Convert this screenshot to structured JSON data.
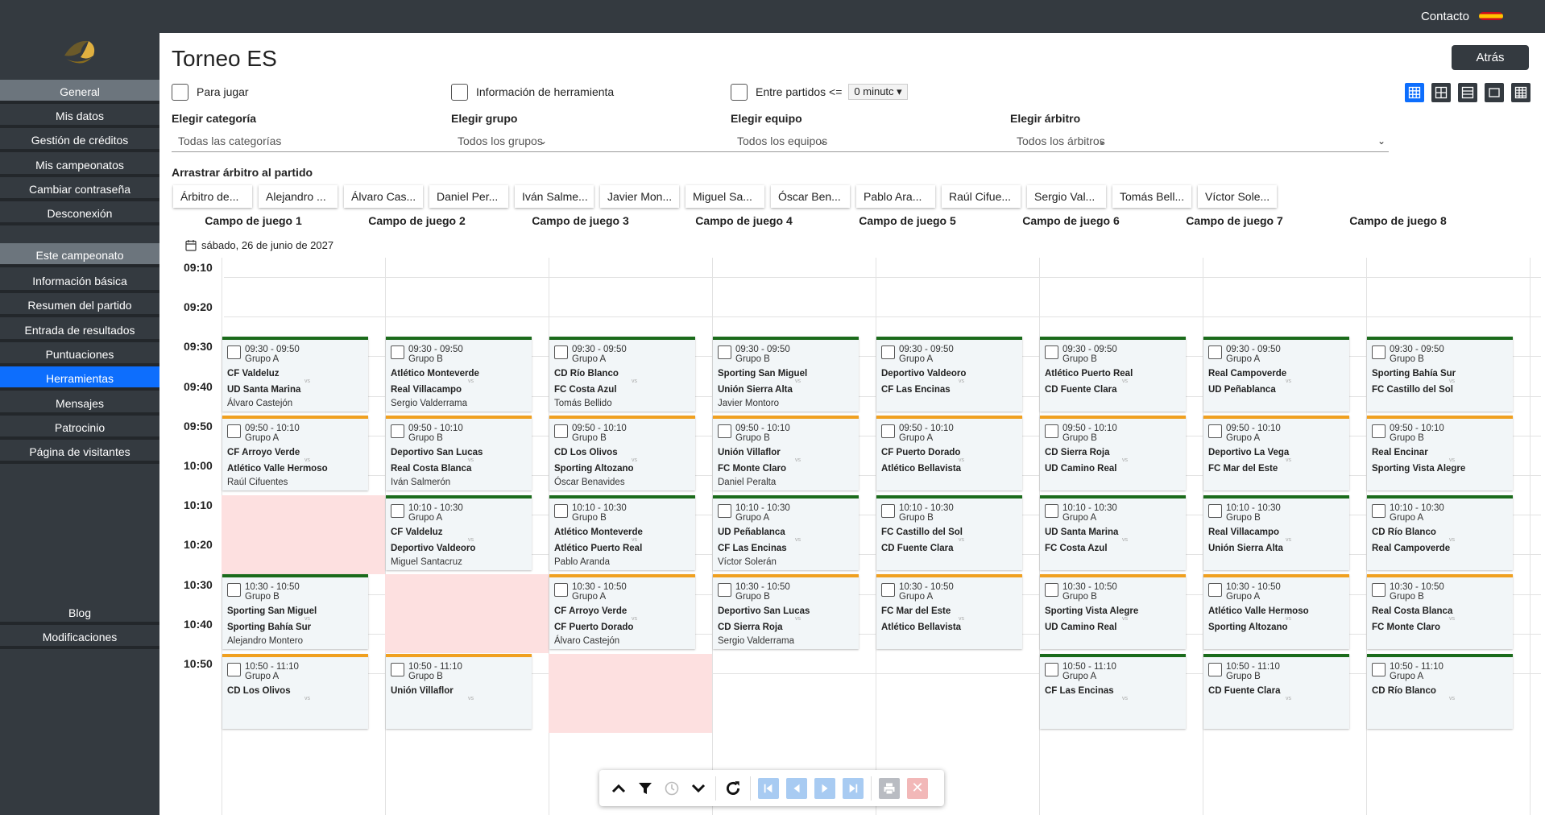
{
  "topbar": {
    "contact": "Contacto"
  },
  "sidebar": {
    "general_header": "General",
    "general_items": [
      "Mis datos",
      "Gestión de créditos",
      "Mis campeonatos",
      "Cambiar contraseña",
      "Desconexión"
    ],
    "champ_header": "Este campeonato",
    "champ_items": [
      "Información básica",
      "Resumen del partido",
      "Entrada de resultados",
      "Puntuaciones",
      "Herramientas",
      "Mensajes",
      "Patrocinio",
      "Página de visitantes"
    ],
    "bottom_items": [
      "Blog",
      "Modificaciones"
    ]
  },
  "page": {
    "title": "Torneo ES",
    "back": "Atrás",
    "chk_play": "Para jugar",
    "chk_tool": "Información de herramienta",
    "chk_between": "Entre partidos <=",
    "between_value": "0 minutc"
  },
  "filters": [
    {
      "label": "Elegir categoría",
      "value": "Todas las categorías"
    },
    {
      "label": "Elegir grupo",
      "value": "Todos los grupos"
    },
    {
      "label": "Elegir equipo",
      "value": "Todos los equipos"
    },
    {
      "label": "Elegir árbitro",
      "value": "Todos los árbitros"
    }
  ],
  "referees_title": "Arrastrar árbitro al partido",
  "referees": [
    "Árbitro de...",
    "Alejandro ...",
    "Álvaro Cas...",
    "Daniel Per...",
    "Iván Salme...",
    "Javier Mon...",
    "Miguel Sa...",
    "Óscar Ben...",
    "Pablo Ara...",
    "Raúl Cifue...",
    "Sergio Val...",
    "Tomás Bell...",
    "Víctor Sole..."
  ],
  "fields": [
    "Campo de juego 1",
    "Campo de juego 2",
    "Campo de juego 3",
    "Campo de juego 4",
    "Campo de juego 5",
    "Campo de juego 6",
    "Campo de juego 7",
    "Campo de juego 8"
  ],
  "date": "sábado, 26 de junio de 2027",
  "times": [
    "09:10",
    "09:20",
    "09:30",
    "09:40",
    "09:50",
    "10:00",
    "10:10",
    "10:20",
    "10:30",
    "10:40",
    "10:50"
  ],
  "matches": [
    {
      "row": 0,
      "col": 0,
      "color": "green",
      "time": "09:30 - 09:50",
      "group": "Grupo A",
      "home": "CF Valdeluz",
      "away": "UD Santa Marina",
      "ref": "Álvaro Castejón"
    },
    {
      "row": 0,
      "col": 1,
      "color": "green",
      "time": "09:30 - 09:50",
      "group": "Grupo B",
      "home": "Atlético Monteverde",
      "away": "Real Villacampo",
      "ref": "Sergio Valderrama"
    },
    {
      "row": 0,
      "col": 2,
      "color": "green",
      "time": "09:30 - 09:50",
      "group": "Grupo A",
      "home": "CD Río Blanco",
      "away": "FC Costa Azul",
      "ref": "Tomás Bellido"
    },
    {
      "row": 0,
      "col": 3,
      "color": "green",
      "time": "09:30 - 09:50",
      "group": "Grupo B",
      "home": "Sporting San Miguel",
      "away": "Unión Sierra Alta",
      "ref": "Javier Montoro"
    },
    {
      "row": 0,
      "col": 4,
      "color": "green",
      "time": "09:30 - 09:50",
      "group": "Grupo A",
      "home": "Deportivo Valdeoro",
      "away": "CF Las Encinas",
      "ref": ""
    },
    {
      "row": 0,
      "col": 5,
      "color": "green",
      "time": "09:30 - 09:50",
      "group": "Grupo B",
      "home": "Atlético Puerto Real",
      "away": "CD Fuente Clara",
      "ref": ""
    },
    {
      "row": 0,
      "col": 6,
      "color": "green",
      "time": "09:30 - 09:50",
      "group": "Grupo A",
      "home": "Real Campoverde",
      "away": "UD Peñablanca",
      "ref": ""
    },
    {
      "row": 0,
      "col": 7,
      "color": "green",
      "time": "09:30 - 09:50",
      "group": "Grupo B",
      "home": "Sporting Bahía Sur",
      "away": "FC Castillo del Sol",
      "ref": ""
    },
    {
      "row": 1,
      "col": 0,
      "color": "orange",
      "time": "09:50 - 10:10",
      "group": "Grupo A",
      "home": "CF Arroyo Verde",
      "away": "Atlético Valle Hermoso",
      "ref": "Raúl Cifuentes"
    },
    {
      "row": 1,
      "col": 1,
      "color": "orange",
      "time": "09:50 - 10:10",
      "group": "Grupo B",
      "home": "Deportivo San Lucas",
      "away": "Real Costa Blanca",
      "ref": "Iván Salmerón"
    },
    {
      "row": 1,
      "col": 2,
      "color": "orange",
      "time": "09:50 - 10:10",
      "group": "Grupo B",
      "home": "CD Los Olivos",
      "away": "Sporting Altozano",
      "ref": "Óscar Benavides"
    },
    {
      "row": 1,
      "col": 3,
      "color": "orange",
      "time": "09:50 - 10:10",
      "group": "Grupo B",
      "home": "Unión Villaflor",
      "away": "FC Monte Claro",
      "ref": "Daniel Peralta"
    },
    {
      "row": 1,
      "col": 4,
      "color": "orange",
      "time": "09:50 - 10:10",
      "group": "Grupo A",
      "home": "CF Puerto Dorado",
      "away": "Atlético Bellavista",
      "ref": ""
    },
    {
      "row": 1,
      "col": 5,
      "color": "orange",
      "time": "09:50 - 10:10",
      "group": "Grupo B",
      "home": "CD Sierra Roja",
      "away": "UD Camino Real",
      "ref": ""
    },
    {
      "row": 1,
      "col": 6,
      "color": "orange",
      "time": "09:50 - 10:10",
      "group": "Grupo A",
      "home": "Deportivo La Vega",
      "away": "FC Mar del Este",
      "ref": ""
    },
    {
      "row": 1,
      "col": 7,
      "color": "orange",
      "time": "09:50 - 10:10",
      "group": "Grupo B",
      "home": "Real Encinar",
      "away": "Sporting Vista Alegre",
      "ref": ""
    },
    {
      "row": 2,
      "col": 1,
      "color": "green",
      "time": "10:10 - 10:30",
      "group": "Grupo A",
      "home": "CF Valdeluz",
      "away": "Deportivo Valdeoro",
      "ref": "Miguel Santacruz"
    },
    {
      "row": 2,
      "col": 2,
      "color": "green",
      "time": "10:10 - 10:30",
      "group": "Grupo B",
      "home": "Atlético Monteverde",
      "away": "Atlético Puerto Real",
      "ref": "Pablo Aranda"
    },
    {
      "row": 2,
      "col": 3,
      "color": "green",
      "time": "10:10 - 10:30",
      "group": "Grupo A",
      "home": "UD Peñablanca",
      "away": "CF Las Encinas",
      "ref": "Víctor Solerán"
    },
    {
      "row": 2,
      "col": 4,
      "color": "green",
      "time": "10:10 - 10:30",
      "group": "Grupo B",
      "home": "FC Castillo del Sol",
      "away": "CD Fuente Clara",
      "ref": ""
    },
    {
      "row": 2,
      "col": 5,
      "color": "green",
      "time": "10:10 - 10:30",
      "group": "Grupo A",
      "home": "UD Santa Marina",
      "away": "FC Costa Azul",
      "ref": ""
    },
    {
      "row": 2,
      "col": 6,
      "color": "green",
      "time": "10:10 - 10:30",
      "group": "Grupo B",
      "home": "Real Villacampo",
      "away": "Unión Sierra Alta",
      "ref": ""
    },
    {
      "row": 2,
      "col": 7,
      "color": "green",
      "time": "10:10 - 10:30",
      "group": "Grupo A",
      "home": "CD Río Blanco",
      "away": "Real Campoverde",
      "ref": ""
    },
    {
      "row": 3,
      "col": 0,
      "color": "green",
      "time": "10:30 - 10:50",
      "group": "Grupo B",
      "home": "Sporting San Miguel",
      "away": "Sporting Bahía Sur",
      "ref": "Alejandro Montero"
    },
    {
      "row": 3,
      "col": 2,
      "color": "orange",
      "time": "10:30 - 10:50",
      "group": "Grupo A",
      "home": "CF Arroyo Verde",
      "away": "CF Puerto Dorado",
      "ref": "Álvaro Castejón"
    },
    {
      "row": 3,
      "col": 3,
      "color": "orange",
      "time": "10:30 - 10:50",
      "group": "Grupo B",
      "home": "Deportivo San Lucas",
      "away": "CD Sierra Roja",
      "ref": "Sergio Valderrama"
    },
    {
      "row": 3,
      "col": 4,
      "color": "orange",
      "time": "10:30 - 10:50",
      "group": "Grupo A",
      "home": "FC Mar del Este",
      "away": "Atlético Bellavista",
      "ref": ""
    },
    {
      "row": 3,
      "col": 5,
      "color": "orange",
      "time": "10:30 - 10:50",
      "group": "Grupo B",
      "home": "Sporting Vista Alegre",
      "away": "UD Camino Real",
      "ref": ""
    },
    {
      "row": 3,
      "col": 6,
      "color": "orange",
      "time": "10:30 - 10:50",
      "group": "Grupo A",
      "home": "Atlético Valle Hermoso",
      "away": "Sporting Altozano",
      "ref": ""
    },
    {
      "row": 3,
      "col": 7,
      "color": "orange",
      "time": "10:30 - 10:50",
      "group": "Grupo B",
      "home": "Real Costa Blanca",
      "away": "FC Monte Claro",
      "ref": ""
    },
    {
      "row": 4,
      "col": 0,
      "color": "orange",
      "time": "10:50 - 11:10",
      "group": "Grupo A",
      "home": "CD Los Olivos",
      "away": "",
      "ref": ""
    },
    {
      "row": 4,
      "col": 1,
      "color": "orange",
      "time": "10:50 - 11:10",
      "group": "Grupo B",
      "home": "Unión Villaflor",
      "away": "",
      "ref": ""
    },
    {
      "row": 4,
      "col": 5,
      "color": "green",
      "time": "10:50 - 11:10",
      "group": "Grupo A",
      "home": "CF Las Encinas",
      "away": "",
      "ref": ""
    },
    {
      "row": 4,
      "col": 6,
      "color": "green",
      "time": "10:50 - 11:10",
      "group": "Grupo B",
      "home": "CD Fuente Clara",
      "away": "",
      "ref": ""
    },
    {
      "row": 4,
      "col": 7,
      "color": "green",
      "time": "10:50 - 11:10",
      "group": "Grupo A",
      "home": "CD Río Blanco",
      "away": "",
      "ref": ""
    }
  ],
  "empty_slots": [
    {
      "row": 2,
      "col": 0
    },
    {
      "row": 3,
      "col": 1
    },
    {
      "row": 4,
      "col": 2
    }
  ],
  "colors": {
    "green": "#1b6b1b",
    "orange": "#f0a020",
    "active": "#0d6efd",
    "dark": "#343a40"
  }
}
